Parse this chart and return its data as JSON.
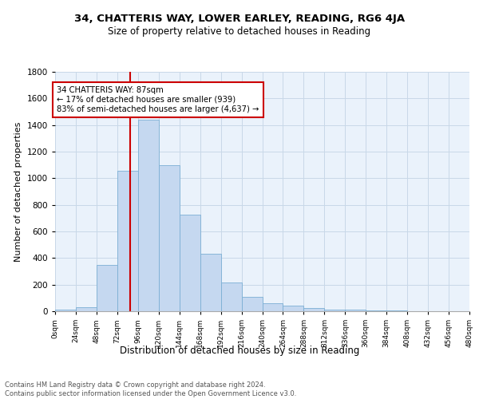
{
  "title1": "34, CHATTERIS WAY, LOWER EARLEY, READING, RG6 4JA",
  "title2": "Size of property relative to detached houses in Reading",
  "xlabel": "Distribution of detached houses by size in Reading",
  "ylabel": "Number of detached properties",
  "bin_edges": [
    0,
    24,
    48,
    72,
    96,
    120,
    144,
    168,
    192,
    216,
    240,
    264,
    288,
    312,
    336,
    360,
    384,
    408,
    432,
    456,
    480
  ],
  "bar_heights": [
    10,
    30,
    350,
    1055,
    1440,
    1100,
    725,
    430,
    215,
    110,
    60,
    45,
    25,
    15,
    10,
    8,
    5,
    3,
    2,
    1
  ],
  "bar_color": "#c5d8f0",
  "bar_edge_color": "#7bafd4",
  "vline_x": 87,
  "vline_color": "#cc0000",
  "annotation_text": "34 CHATTERIS WAY: 87sqm\n← 17% of detached houses are smaller (939)\n83% of semi-detached houses are larger (4,637) →",
  "annotation_box_color": "#ffffff",
  "annotation_box_edge_color": "#cc0000",
  "ylim": [
    0,
    1800
  ],
  "yticks": [
    0,
    200,
    400,
    600,
    800,
    1000,
    1200,
    1400,
    1600,
    1800
  ],
  "footer_text": "Contains HM Land Registry data © Crown copyright and database right 2024.\nContains public sector information licensed under the Open Government Licence v3.0.",
  "grid_color": "#c8d8e8",
  "background_color": "#eaf2fb"
}
